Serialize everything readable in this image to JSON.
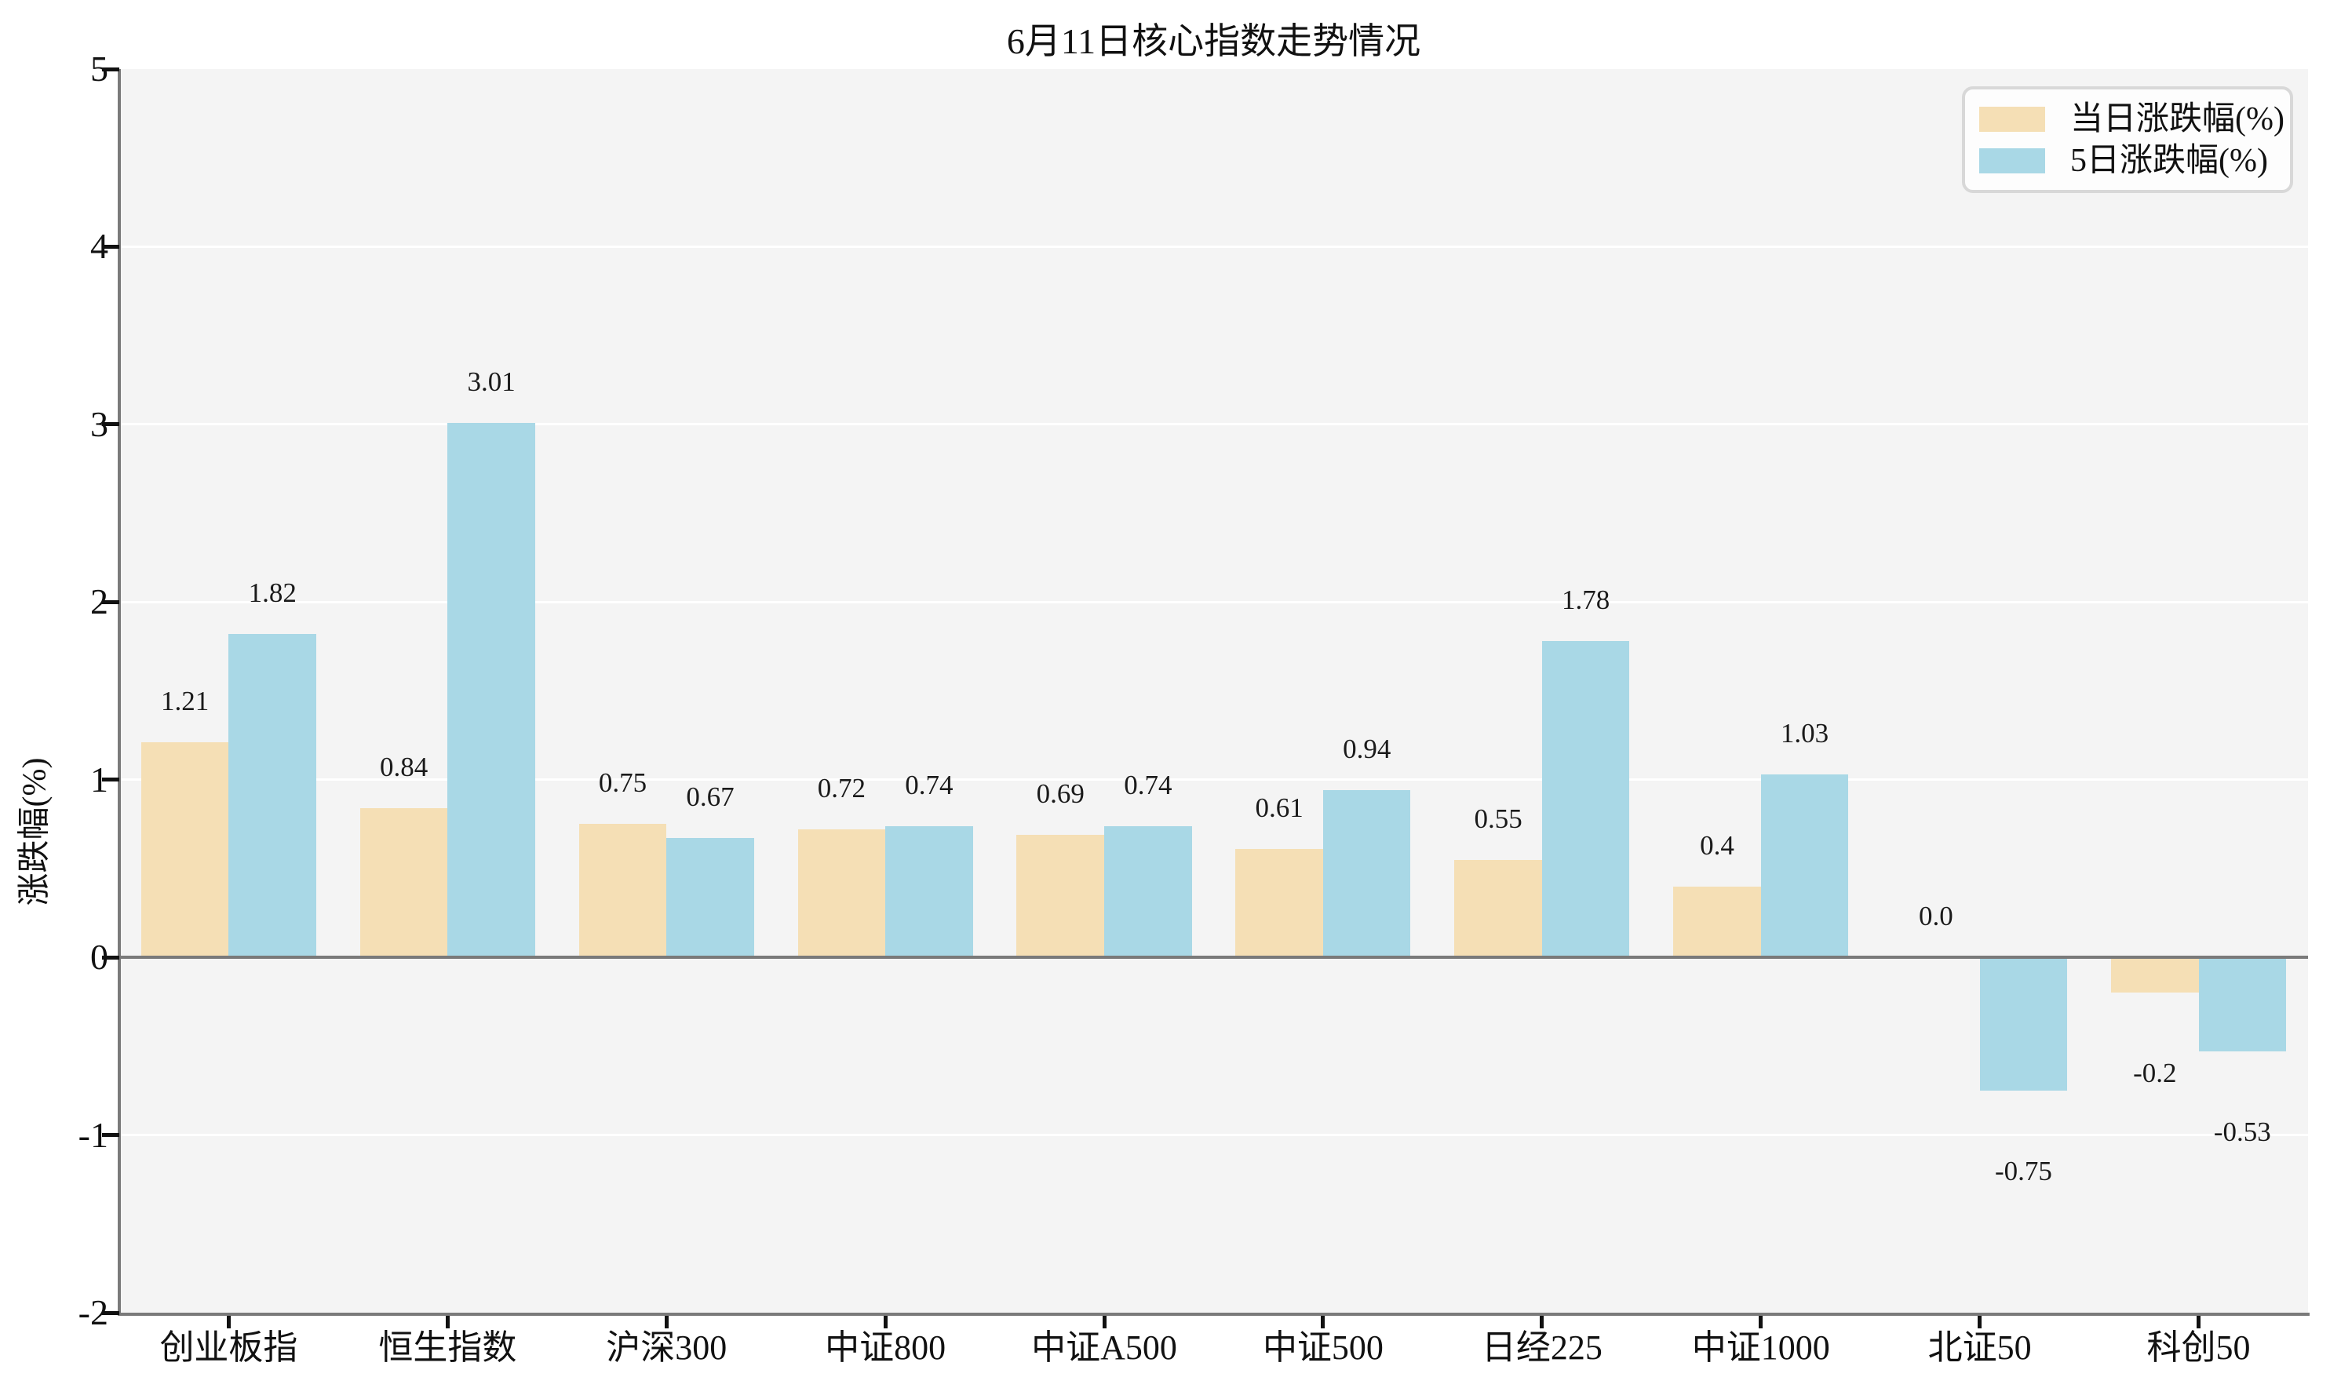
{
  "chart_data": {
    "type": "bar",
    "title": "6月11日核心指数走势情况",
    "xlabel": "",
    "ylabel": "涨跌幅(%)",
    "categories": [
      "创业板指",
      "恒生指数",
      "沪深300",
      "中证800",
      "中证A500",
      "中证500",
      "日经225",
      "中证1000",
      "北证50",
      "科创50"
    ],
    "series": [
      {
        "name": "当日涨跌幅(%)",
        "color": "#f5dfb5",
        "values": [
          1.21,
          0.84,
          0.75,
          0.72,
          0.69,
          0.61,
          0.55,
          0.4,
          0.0,
          -0.2
        ],
        "labels": [
          "1.21",
          "0.84",
          "0.75",
          "0.72",
          "0.69",
          "0.61",
          "0.55",
          "0.4",
          "0.0",
          "-0.2"
        ]
      },
      {
        "name": "5日涨跌幅(%)",
        "color": "#a9d8e6",
        "values": [
          1.82,
          3.01,
          0.67,
          0.74,
          0.74,
          0.94,
          1.78,
          1.03,
          -0.75,
          -0.53
        ],
        "labels": [
          "1.82",
          "3.01",
          "0.67",
          "0.74",
          "0.74",
          "0.94",
          "1.78",
          "1.03",
          "-0.75",
          "-0.53"
        ]
      }
    ],
    "ylim": [
      -2,
      5
    ],
    "yticks": [
      5,
      4,
      3,
      2,
      1,
      0,
      -1,
      -2
    ],
    "ytick_labels": [
      "5",
      "4",
      "3",
      "2",
      "1",
      "0",
      "-1",
      "-2"
    ],
    "grid": true,
    "legend_position": "upper right",
    "plot_background": "#f4f4f4",
    "grid_color": "#ffffff",
    "axis_color": "#7a7a7a",
    "tick_color": "#111111"
  }
}
